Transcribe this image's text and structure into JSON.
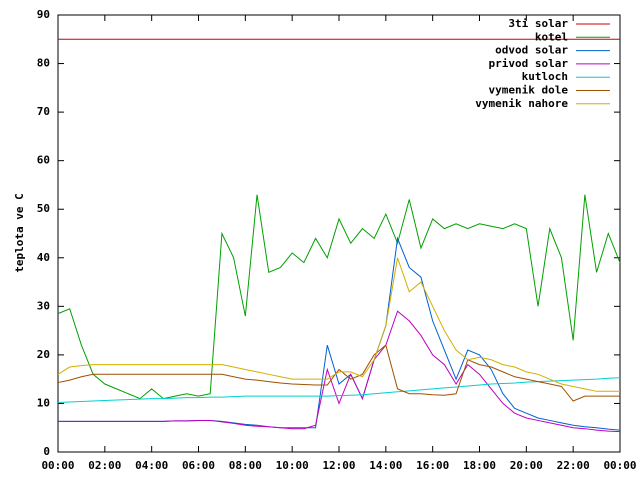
{
  "chart_data": {
    "type": "line",
    "y_label": "teplota ve C",
    "legend": "top-right",
    "x": [
      0,
      0.5,
      1,
      1.5,
      2,
      2.5,
      3,
      3.5,
      4,
      4.5,
      5,
      5.5,
      6,
      6.5,
      7,
      7.5,
      8,
      8.5,
      9,
      9.5,
      10,
      10.5,
      11,
      11.5,
      12,
      12.5,
      13,
      13.5,
      14,
      14.5,
      15,
      15.5,
      16,
      16.5,
      17,
      17.5,
      18,
      18.5,
      19,
      19.5,
      20,
      20.5,
      21,
      21.5,
      22,
      22.5,
      23,
      23.5,
      24
    ],
    "xlim": [
      0,
      24
    ],
    "xticks": [
      {
        "value": 0,
        "label": "00:00"
      },
      {
        "value": 2,
        "label": "02:00"
      },
      {
        "value": 4,
        "label": "04:00"
      },
      {
        "value": 6,
        "label": "06:00"
      },
      {
        "value": 8,
        "label": "08:00"
      },
      {
        "value": 10,
        "label": "10:00"
      },
      {
        "value": 12,
        "label": "12:00"
      },
      {
        "value": 14,
        "label": "14:00"
      },
      {
        "value": 16,
        "label": "16:00"
      },
      {
        "value": 18,
        "label": "18:00"
      },
      {
        "value": 20,
        "label": "20:00"
      },
      {
        "value": 22,
        "label": "22:00"
      },
      {
        "value": 24,
        "label": "00:00"
      }
    ],
    "ylim": [
      0,
      90
    ],
    "yticks": [
      0,
      10,
      20,
      30,
      40,
      50,
      60,
      70,
      80,
      90
    ],
    "series": [
      {
        "name": "3ti solar",
        "color": "#cc0000",
        "values": [
          85,
          85,
          85,
          85,
          85,
          85,
          85,
          85,
          85,
          85,
          85,
          85,
          85,
          85,
          85,
          85,
          85,
          85,
          85,
          85,
          85,
          85,
          85,
          85,
          85,
          85,
          85,
          85,
          85,
          85,
          85,
          85,
          85,
          85,
          85,
          85,
          85,
          85,
          85,
          85,
          85,
          85,
          85,
          85,
          85,
          85,
          85,
          85,
          85
        ]
      },
      {
        "name": "kotel",
        "color": "#00a000",
        "values": [
          28.5,
          29.5,
          22,
          16,
          14,
          13,
          12,
          11,
          13,
          11,
          11.5,
          12,
          11.5,
          12,
          45,
          40,
          28,
          53,
          37,
          38,
          41,
          39,
          44,
          40,
          48,
          43,
          46,
          44,
          49,
          43,
          52,
          42,
          48,
          46,
          47,
          46,
          47,
          46.5,
          46,
          47,
          46,
          30,
          46,
          40,
          23,
          53,
          37,
          45,
          39
        ]
      },
      {
        "name": "odvod solar",
        "color": "#0060d0",
        "values": [
          6.3,
          6.3,
          6.3,
          6.3,
          6.3,
          6.3,
          6.3,
          6.3,
          6.3,
          6.3,
          6.4,
          6.4,
          6.5,
          6.5,
          6.3,
          6,
          5.7,
          5.5,
          5.2,
          5,
          5,
          5,
          5,
          22,
          14,
          16,
          11,
          19,
          26,
          44,
          38,
          36,
          27,
          21,
          15,
          21,
          20,
          17,
          12,
          9,
          8,
          7,
          6.5,
          6,
          5.5,
          5.2,
          5,
          4.7,
          4.5
        ]
      },
      {
        "name": "privod solar",
        "color": "#c000c0",
        "values": [
          6.3,
          6.3,
          6.3,
          6.3,
          6.3,
          6.3,
          6.3,
          6.3,
          6.3,
          6.3,
          6.4,
          6.4,
          6.5,
          6.5,
          6.2,
          5.9,
          5.5,
          5.3,
          5.2,
          5,
          4.8,
          4.8,
          5.5,
          17,
          10,
          16,
          11,
          19,
          22,
          29,
          27,
          24,
          20,
          18,
          14,
          18,
          16,
          13,
          10,
          8,
          7,
          6.5,
          6,
          5.5,
          5,
          4.8,
          4.5,
          4.3,
          4.2
        ]
      },
      {
        "name": "kutloch",
        "color": "#00d0d0",
        "values": [
          10.2,
          10.3,
          10.4,
          10.5,
          10.6,
          10.7,
          10.8,
          10.9,
          11,
          11,
          11.1,
          11.2,
          11.2,
          11.3,
          11.3,
          11.4,
          11.5,
          11.5,
          11.5,
          11.5,
          11.5,
          11.5,
          11.5,
          11.5,
          11.6,
          11.7,
          11.8,
          12,
          12.2,
          12.4,
          12.6,
          12.8,
          13,
          13.2,
          13.4,
          13.6,
          13.8,
          14,
          14.1,
          14.2,
          14.4,
          14.5,
          14.6,
          14.7,
          14.8,
          14.9,
          15,
          15.2,
          15.3
        ]
      },
      {
        "name": "vymenik dole",
        "color": "#a05000",
        "values": [
          14.3,
          14.8,
          15.5,
          16,
          16,
          16,
          16,
          16,
          16,
          16,
          16,
          16,
          16,
          16,
          16,
          15.5,
          15,
          14.8,
          14.5,
          14.2,
          14,
          13.9,
          13.8,
          13.8,
          17,
          15,
          16,
          20,
          22,
          13,
          12,
          12,
          11.8,
          11.7,
          12,
          19,
          18,
          17.5,
          16.5,
          15.5,
          15,
          14.5,
          14,
          13.5,
          10.5,
          11.5,
          11.5,
          11.5,
          11.5
        ]
      },
      {
        "name": "vymenik nahore",
        "color": "#d0b000",
        "values": [
          16,
          17.5,
          17.8,
          18,
          18,
          18,
          18,
          18,
          18,
          18,
          18,
          18,
          18,
          18,
          18,
          17.5,
          17,
          16.5,
          16,
          15.5,
          15,
          15,
          15,
          15,
          16.5,
          16.5,
          15.5,
          19,
          26,
          40,
          33,
          35,
          30,
          25,
          21,
          19,
          19.5,
          19,
          18,
          17.5,
          16.5,
          16,
          15,
          14,
          13.5,
          13,
          12.5,
          12.5,
          12.5
        ]
      }
    ]
  }
}
